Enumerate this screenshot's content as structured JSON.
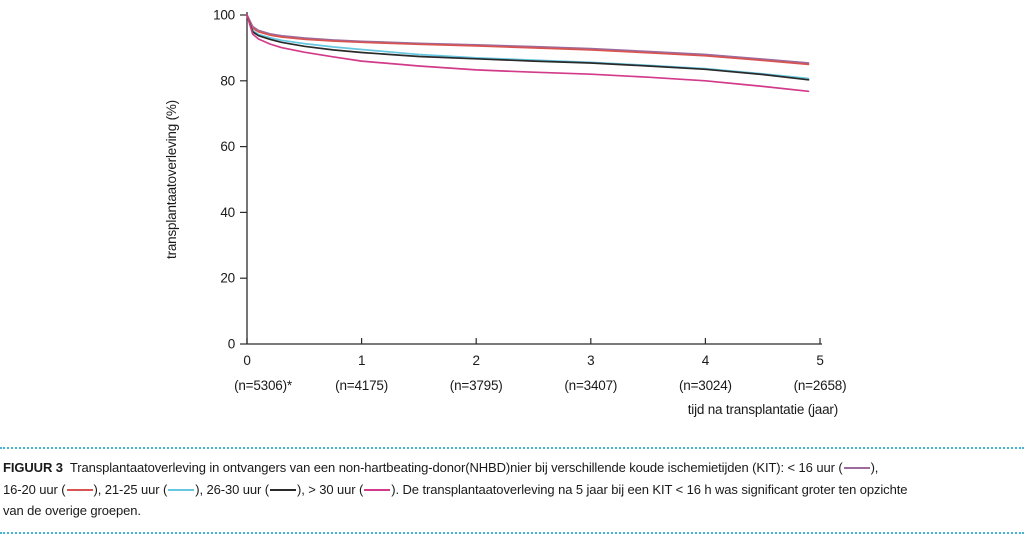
{
  "figure": {
    "rule_color": "#45b5d6",
    "caption": {
      "label": "FIGUUR 3",
      "t1": "Transplantaatoverleving in ontvangers van een non-hartbeating-donor(NHBD)nier bij verschillende koude ischemietijden (KIT): < 16 uur (",
      "t2": "),",
      "t3": "16-20 uur (",
      "t4": "), 21-25 uur (",
      "t5": "), 26-30 uur (",
      "t6": "), > 30 uur (",
      "t7": "). De transplantaatoverleving na 5 jaar bij een KIT < 16 h was significant groter ten opzichte",
      "t8": "van de overige groepen."
    }
  },
  "chart_data": {
    "type": "line",
    "title": "",
    "xlabel": "tijd na transplantatie (jaar)",
    "ylabel": "transplantaatoverleving (%)",
    "xlim": [
      0,
      5
    ],
    "ylim": [
      0,
      100
    ],
    "x_ticks": [
      0,
      1,
      2,
      3,
      4,
      5
    ],
    "y_ticks": [
      0,
      20,
      40,
      60,
      80,
      100
    ],
    "n_labels": [
      "(n=5306)*",
      "(n=4175)",
      "(n=3795)",
      "(n=3407)",
      "(n=3024)",
      "(n=2658)"
    ],
    "grid": false,
    "legend_position": "in-caption",
    "x": [
      0,
      0.05,
      0.1,
      0.2,
      0.3,
      0.5,
      0.75,
      1,
      1.5,
      2,
      2.5,
      3,
      3.5,
      4,
      4.5,
      4.9
    ],
    "series": [
      {
        "name": "< 16 uur",
        "color": "#9c6a9c",
        "values": [
          100,
          96.5,
          95.3,
          94.3,
          93.7,
          93.0,
          92.4,
          92.0,
          91.4,
          90.9,
          90.4,
          89.8,
          88.9,
          88.0,
          86.6,
          85.4
        ]
      },
      {
        "name": "16-20 uur",
        "color": "#d85450",
        "values": [
          100,
          96.0,
          94.9,
          93.9,
          93.3,
          92.6,
          92.1,
          91.7,
          91.1,
          90.6,
          90.0,
          89.4,
          88.5,
          87.6,
          86.2,
          85.0
        ]
      },
      {
        "name": "21-25 uur",
        "color": "#66c7e0",
        "values": [
          100,
          95.3,
          94.1,
          93.1,
          92.3,
          91.3,
          90.3,
          89.5,
          88.0,
          87.0,
          86.3,
          85.6,
          84.7,
          83.7,
          82.1,
          80.7
        ]
      },
      {
        "name": "26-30 uur",
        "color": "#2a2a2a",
        "values": [
          100,
          94.9,
          93.7,
          92.6,
          91.7,
          90.5,
          89.4,
          88.6,
          87.4,
          86.7,
          86.0,
          85.4,
          84.5,
          83.5,
          81.9,
          80.3
        ]
      },
      {
        "name": "> 30 uur",
        "color": "#d23a8a",
        "values": [
          100,
          94.2,
          92.7,
          91.2,
          90.1,
          88.7,
          87.3,
          86.0,
          84.5,
          83.3,
          82.6,
          82.0,
          81.1,
          80.0,
          78.3,
          76.8
        ]
      }
    ]
  }
}
